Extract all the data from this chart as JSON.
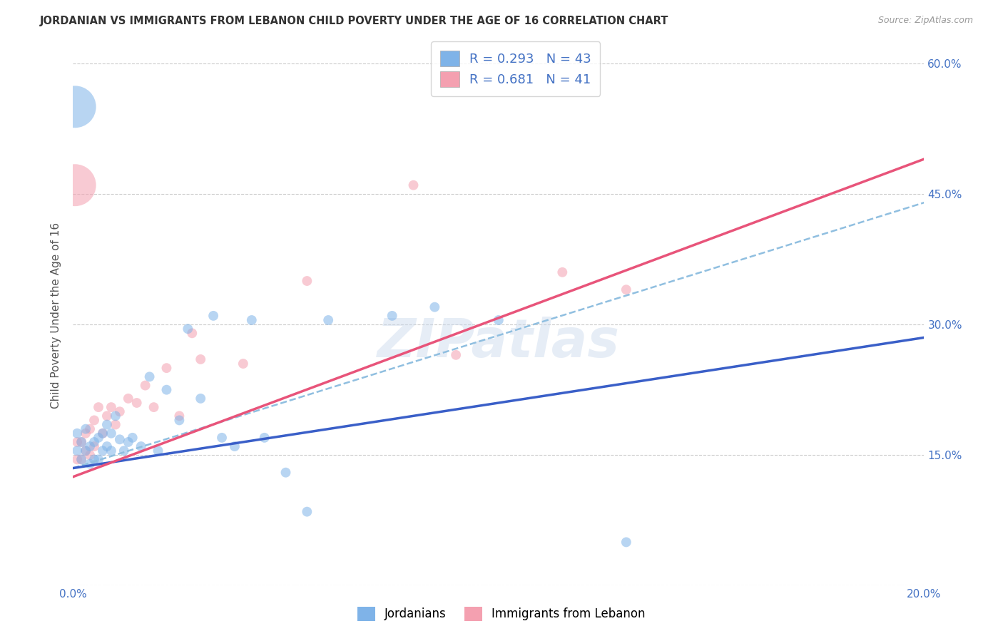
{
  "title": "JORDANIAN VS IMMIGRANTS FROM LEBANON CHILD POVERTY UNDER THE AGE OF 16 CORRELATION CHART",
  "source": "Source: ZipAtlas.com",
  "ylabel": "Child Poverty Under the Age of 16",
  "xlim": [
    0.0,
    0.2
  ],
  "ylim": [
    0.0,
    0.62
  ],
  "xticks": [
    0.0,
    0.04,
    0.08,
    0.12,
    0.16,
    0.2
  ],
  "xtick_labels": [
    "0.0%",
    "",
    "",
    "",
    "",
    "20.0%"
  ],
  "ytick_labels_right": [
    "",
    "15.0%",
    "30.0%",
    "45.0%",
    "60.0%"
  ],
  "ytick_vals_right": [
    0.0,
    0.15,
    0.3,
    0.45,
    0.6
  ],
  "blue_color": "#7fb3e8",
  "pink_color": "#f4a0b0",
  "blue_line_color": "#3a5fc8",
  "pink_line_color": "#e8547a",
  "dashed_line_color": "#90bfe0",
  "R_blue": 0.293,
  "N_blue": 43,
  "R_pink": 0.681,
  "N_pink": 41,
  "legend_label_blue": "Jordanians",
  "legend_label_pink": "Immigrants from Lebanon",
  "watermark": "ZIPatlas",
  "blue_scatter_x": [
    0.001,
    0.001,
    0.002,
    0.002,
    0.003,
    0.003,
    0.004,
    0.004,
    0.005,
    0.005,
    0.006,
    0.006,
    0.007,
    0.007,
    0.008,
    0.008,
    0.009,
    0.009,
    0.01,
    0.011,
    0.012,
    0.013,
    0.014,
    0.016,
    0.018,
    0.02,
    0.022,
    0.025,
    0.027,
    0.03,
    0.033,
    0.035,
    0.038,
    0.042,
    0.045,
    0.05,
    0.055,
    0.06,
    0.075,
    0.085,
    0.1,
    0.13,
    0.0005
  ],
  "blue_scatter_y": [
    0.175,
    0.155,
    0.165,
    0.145,
    0.18,
    0.155,
    0.16,
    0.14,
    0.165,
    0.145,
    0.17,
    0.145,
    0.175,
    0.155,
    0.185,
    0.16,
    0.175,
    0.155,
    0.195,
    0.168,
    0.155,
    0.165,
    0.17,
    0.16,
    0.24,
    0.155,
    0.225,
    0.19,
    0.295,
    0.215,
    0.31,
    0.17,
    0.16,
    0.305,
    0.17,
    0.13,
    0.085,
    0.305,
    0.31,
    0.32,
    0.305,
    0.05,
    0.55
  ],
  "blue_scatter_size": [
    100,
    100,
    100,
    100,
    100,
    100,
    100,
    100,
    100,
    100,
    100,
    100,
    100,
    100,
    100,
    100,
    100,
    100,
    100,
    100,
    100,
    100,
    100,
    100,
    100,
    100,
    100,
    100,
    100,
    100,
    100,
    100,
    100,
    100,
    100,
    100,
    100,
    100,
    100,
    100,
    100,
    100,
    1800
  ],
  "pink_scatter_x": [
    0.001,
    0.001,
    0.002,
    0.002,
    0.003,
    0.003,
    0.004,
    0.004,
    0.005,
    0.005,
    0.006,
    0.007,
    0.008,
    0.009,
    0.01,
    0.011,
    0.013,
    0.015,
    0.017,
    0.019,
    0.022,
    0.025,
    0.028,
    0.03,
    0.04,
    0.055,
    0.08,
    0.09,
    0.115,
    0.13,
    0.0005
  ],
  "pink_scatter_y": [
    0.165,
    0.145,
    0.165,
    0.145,
    0.175,
    0.155,
    0.18,
    0.15,
    0.19,
    0.16,
    0.205,
    0.175,
    0.195,
    0.205,
    0.185,
    0.2,
    0.215,
    0.21,
    0.23,
    0.205,
    0.25,
    0.195,
    0.29,
    0.26,
    0.255,
    0.35,
    0.46,
    0.265,
    0.36,
    0.34,
    0.46
  ],
  "pink_scatter_size": [
    100,
    100,
    100,
    100,
    100,
    100,
    100,
    100,
    100,
    100,
    100,
    100,
    100,
    100,
    100,
    100,
    100,
    100,
    100,
    100,
    100,
    100,
    100,
    100,
    100,
    100,
    100,
    100,
    100,
    100,
    1800
  ],
  "blue_line": [
    0.0,
    0.2,
    0.135,
    0.285
  ],
  "pink_line": [
    0.0,
    0.2,
    0.125,
    0.49
  ],
  "dashed_line": [
    0.0,
    0.2,
    0.135,
    0.44
  ],
  "grid_color": "#cccccc",
  "bg_color": "#ffffff",
  "title_color": "#333333",
  "axis_label_color": "#4472c4"
}
